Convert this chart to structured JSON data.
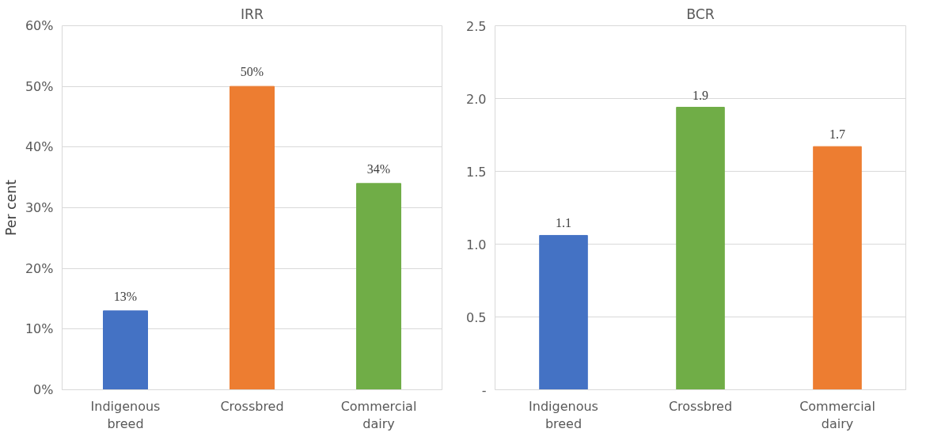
{
  "chart_data": [
    {
      "type": "bar",
      "title": "IRR",
      "ylabel": "Per cent",
      "categories": [
        "Indigenous breed",
        "Crossbred",
        "Commercial dairy"
      ],
      "values": [
        13,
        50,
        34
      ],
      "colors": [
        "#4472c4",
        "#ed7d31",
        "#70ad47"
      ],
      "value_labels": [
        "13%",
        "50%",
        "34%"
      ],
      "ylim": [
        0,
        60
      ],
      "yticks": [
        {
          "value": 0,
          "label": "0%"
        },
        {
          "value": 10,
          "label": "10%"
        },
        {
          "value": 20,
          "label": "20%"
        },
        {
          "value": 30,
          "label": "30%"
        },
        {
          "value": 40,
          "label": "40%"
        },
        {
          "value": 50,
          "label": "50%"
        },
        {
          "value": 60,
          "label": "60%"
        }
      ],
      "grid": "y",
      "legend": false
    },
    {
      "type": "bar",
      "title": "BCR",
      "categories": [
        "Indigenous breed",
        "Crossbred",
        "Commercial dairy"
      ],
      "values": [
        1.06,
        1.94,
        1.67
      ],
      "colors": [
        "#4472c4",
        "#70ad47",
        "#ed7d31"
      ],
      "value_labels": [
        "1.1",
        "1.9",
        "1.7"
      ],
      "ylim": [
        0,
        2.5
      ],
      "yticks": [
        {
          "value": 0,
          "label": "-"
        },
        {
          "value": 0.5,
          "label": "0.5"
        },
        {
          "value": 1.0,
          "label": "1.0"
        },
        {
          "value": 1.5,
          "label": "1.5"
        },
        {
          "value": 2.0,
          "label": "2.0"
        },
        {
          "value": 2.5,
          "label": "2.5"
        }
      ],
      "grid": "y",
      "legend": false
    }
  ]
}
